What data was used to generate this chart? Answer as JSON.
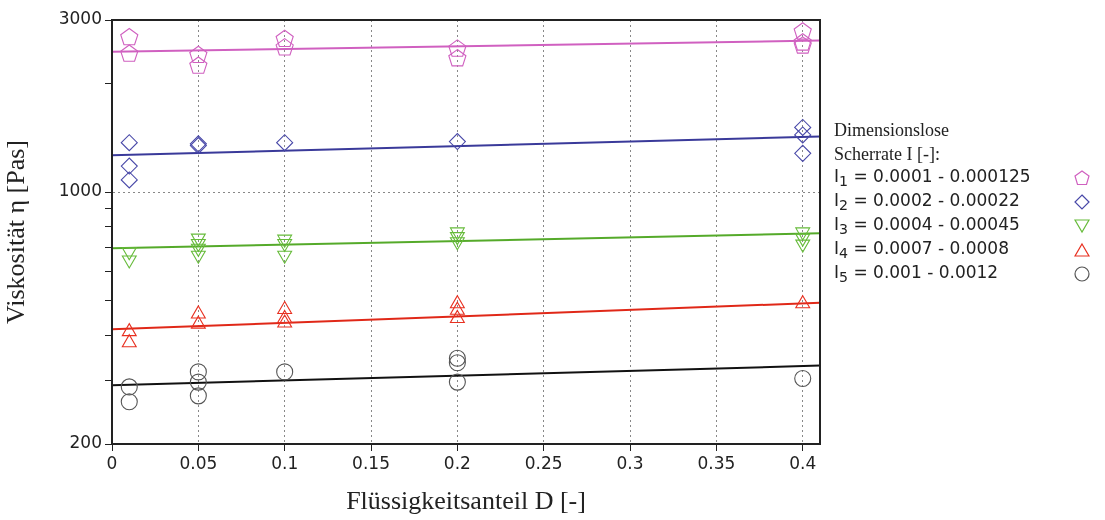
{
  "chart_data": {
    "type": "scatter",
    "xlabel": "Flüssigkeitsanteil D [-]",
    "ylabel": "Viskosität η [Pas]",
    "legend_title": "Dimensionslose Scherrate I [-]:",
    "log": true,
    "grid": true,
    "legend": "right",
    "xlim": [
      0,
      0.41
    ],
    "xticks": [
      0,
      0.05,
      0.1,
      0.15,
      0.2,
      0.25,
      0.3,
      0.35,
      0.4
    ],
    "ylim": [
      200,
      3000
    ],
    "yticks": [
      200,
      {
        "value": 300,
        "label": null
      },
      {
        "value": 400,
        "label": null
      },
      {
        "value": 500,
        "label": null
      },
      {
        "value": 600,
        "label": null
      },
      {
        "value": 700,
        "label": null
      },
      {
        "value": 800,
        "label": null
      },
      {
        "value": 900,
        "label": null
      },
      1000,
      {
        "value": 2000,
        "label": null
      },
      3000
    ],
    "series": [
      {
        "name": "I$_{1}$ = 0.0001 - 0.000125",
        "color": "#d060c0",
        "x": [
          0.01,
          0.01,
          0.05,
          0.05,
          0.1,
          0.1,
          0.2,
          0.2,
          0.4,
          0.4,
          0.4
        ],
        "values": [
          2700,
          2430,
          2410,
          2250,
          2670,
          2530,
          2510,
          2360,
          2800,
          2610,
          2560
        ]
      },
      {
        "type": "line",
        "color": "#d060c0",
        "marker": "none",
        "x": [
          0,
          0.41
        ],
        "values": [
          2450,
          2630
        ]
      },
      {
        "name": "I$_{2}$ = 0.0002 - 0.00022",
        "color": "#4848a8",
        "marker": "diamond",
        "x": [
          0.01,
          0.01,
          0.01,
          0.05,
          0.05,
          0.1,
          0.2,
          0.4,
          0.4,
          0.4
        ],
        "values": [
          1370,
          1180,
          1080,
          1360,
          1345,
          1370,
          1380,
          1510,
          1440,
          1280
        ]
      },
      {
        "type": "line",
        "color": "#3a3a9a",
        "marker": "none",
        "x": [
          0,
          0.41
        ],
        "values": [
          1265,
          1425
        ]
      },
      {
        "name": "I$_{3}$ = 0.0004 - 0.00045",
        "color": "#66bb3a",
        "marker": "triangle-down",
        "x": [
          0.01,
          0.01,
          0.05,
          0.05,
          0.05,
          0.05,
          0.1,
          0.1,
          0.1,
          0.2,
          0.2,
          0.2,
          0.4,
          0.4,
          0.4
        ],
        "values": [
          683,
          648,
          745,
          720,
          698,
          668,
          740,
          720,
          668,
          775,
          752,
          728,
          775,
          745,
          717
        ]
      },
      {
        "type": "line",
        "color": "#55aa2a",
        "marker": "none",
        "x": [
          0,
          0.41
        ],
        "values": [
          698,
          768
        ]
      },
      {
        "name": "I$_{4}$ = 0.0007 - 0.0008",
        "color": "#e83020",
        "marker": "triangle",
        "x": [
          0.01,
          0.01,
          0.05,
          0.05,
          0.1,
          0.1,
          0.1,
          0.2,
          0.2,
          0.2,
          0.4
        ],
        "values": [
          410,
          382,
          459,
          430,
          472,
          446,
          433,
          490,
          470,
          446,
          490
        ]
      },
      {
        "type": "line",
        "color": "#e02818",
        "marker": "none",
        "x": [
          0,
          0.41
        ],
        "values": [
          416,
          493
        ]
      },
      {
        "name": "I$_{5}$ = 0.001 - 0.0012",
        "color": "#555555",
        "marker": "circle",
        "x": [
          0.01,
          0.01,
          0.05,
          0.05,
          0.05,
          0.1,
          0.2,
          0.2,
          0.2,
          0.4
        ],
        "values": [
          288,
          262,
          317,
          297,
          272,
          317,
          346,
          336,
          297,
          304
        ]
      },
      {
        "type": "line",
        "color": "#111111",
        "marker": "none",
        "x": [
          0,
          0.41
        ],
        "values": [
          291,
          330
        ]
      }
    ]
  }
}
